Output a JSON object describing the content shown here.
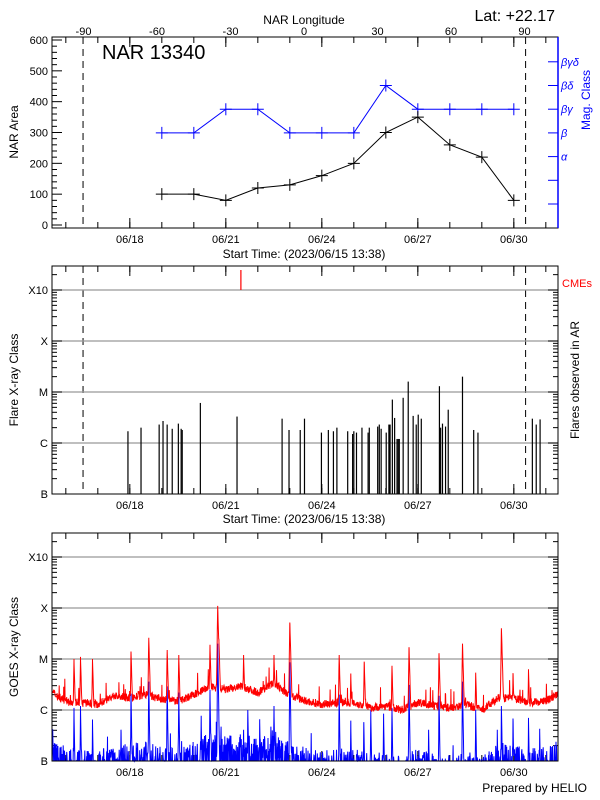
{
  "colors": {
    "area": "#000000",
    "mag_class": "#0000ff",
    "cme": "#ff0000",
    "goes_long": "#ff0000",
    "goes_short": "#0000ff",
    "grid": "#999999"
  },
  "chart_data": [
    {
      "type": "line",
      "title": "NAR 13340",
      "annotation": "Lat: +22.17",
      "top_axis_label": "NAR Longitude",
      "top_axis_ticks": [
        -90,
        -60,
        -30,
        0,
        30,
        60,
        90
      ],
      "xlabel": "Start Time: (2023/06/15 13:38)",
      "x_tick_labels": [
        "06/18",
        "06/21",
        "06/24",
        "06/27",
        "06/30"
      ],
      "xlim": [
        "2023-06-15T13:38",
        "2023-07-01T09:00"
      ],
      "limb_markers": [
        "2023-06-16T12:55",
        "2023-06-30T08:50"
      ],
      "ylabel": "NAR Area",
      "ylim": [
        0,
        600
      ],
      "y_ticks": [
        0,
        100,
        200,
        300,
        400,
        500,
        600
      ],
      "y2label": "Mag. Class",
      "y2_tick_labels": [
        "",
        "",
        "α",
        "β",
        "βγ",
        "βδ",
        "βγδ"
      ],
      "x": [
        "2023-06-19",
        "2023-06-20",
        "2023-06-21",
        "2023-06-22",
        "2023-06-23",
        "2023-06-24",
        "2023-06-25",
        "2023-06-26",
        "2023-06-27",
        "2023-06-28",
        "2023-06-29",
        "2023-06-30"
      ],
      "series": [
        {
          "axis": "left",
          "values": [
            100,
            100,
            80,
            120,
            130,
            160,
            200,
            300,
            350,
            260,
            220,
            80
          ]
        },
        {
          "axis": "right",
          "values": [
            "β",
            "β",
            "βγ",
            "βγ",
            "β",
            "β",
            "β",
            "βδ",
            "βγ",
            "βγ",
            "βγ",
            "βγ"
          ]
        }
      ]
    },
    {
      "type": "bar",
      "ylabel": "Flare X-ray Class",
      "y2label": "Flares observed in AR",
      "cme_label": "CMEs",
      "xlabel": "Start Time: (2023/06/15 13:38)",
      "x_tick_labels": [
        "06/18",
        "06/21",
        "06/24",
        "06/27",
        "06/30"
      ],
      "y_tick_labels": [
        "B",
        "C",
        "M",
        "X",
        "X10"
      ],
      "y_scale": "log",
      "grid": true,
      "cmes": [
        "2023-06-21T11:18"
      ],
      "flares": [
        {
          "t": "2023-06-17T22:36",
          "c": "C1.7"
        },
        {
          "t": "2023-06-18T08:24",
          "c": "C2.0"
        },
        {
          "t": "2023-06-18T22:00",
          "c": "C2.3"
        },
        {
          "t": "2023-06-19T00:54",
          "c": "C2.7"
        },
        {
          "t": "2023-06-19T04:00",
          "c": "C2.3"
        },
        {
          "t": "2023-06-19T07:48",
          "c": "C1.9"
        },
        {
          "t": "2023-06-19T12:24",
          "c": "C2.4"
        },
        {
          "t": "2023-06-19T14:30",
          "c": "C1.9"
        },
        {
          "t": "2023-06-19T15:18",
          "c": "C1.8"
        },
        {
          "t": "2023-06-20T04:54",
          "c": "C6.1"
        },
        {
          "t": "2023-06-21T08:24",
          "c": "C3.3"
        },
        {
          "t": "2023-06-22T18:12",
          "c": "C3.0"
        },
        {
          "t": "2023-06-22T23:24",
          "c": "C1.8"
        },
        {
          "t": "2023-06-23T07:48",
          "c": "C1.8"
        },
        {
          "t": "2023-06-23T11:00",
          "c": "C3.0"
        },
        {
          "t": "2023-06-23T23:42",
          "c": "C1.6"
        },
        {
          "t": "2023-06-24T04:54",
          "c": "C1.8"
        },
        {
          "t": "2023-06-24T08:42",
          "c": "C1.7"
        },
        {
          "t": "2023-06-24T11:18",
          "c": "C2.0"
        },
        {
          "t": "2023-06-24T19:24",
          "c": "C1.7"
        },
        {
          "t": "2023-06-24T23:06",
          "c": "C1.5"
        },
        {
          "t": "2023-06-25T00:00",
          "c": "C1.7"
        },
        {
          "t": "2023-06-25T02:00",
          "c": "C1.6"
        },
        {
          "t": "2023-06-25T06:06",
          "c": "C2.0"
        },
        {
          "t": "2023-06-25T10:42",
          "c": "C1.6"
        },
        {
          "t": "2023-06-25T11:36",
          "c": "C2.0"
        },
        {
          "t": "2023-06-25T17:54",
          "c": "C2.1"
        },
        {
          "t": "2023-06-25T19:06",
          "c": "C2.3"
        },
        {
          "t": "2023-06-25T20:30",
          "c": "C1.9"
        },
        {
          "t": "2023-06-26T00:18",
          "c": "C1.6"
        },
        {
          "t": "2023-06-26T02:18",
          "c": "C2.3"
        },
        {
          "t": "2023-06-26T03:12",
          "c": "C2.3"
        },
        {
          "t": "2023-06-26T04:54",
          "c": "C7.1"
        },
        {
          "t": "2023-06-26T06:36",
          "c": "C3.1"
        },
        {
          "t": "2023-06-26T08:24",
          "c": "C1.2"
        },
        {
          "t": "2023-06-26T09:18",
          "c": "C1.2"
        },
        {
          "t": "2023-06-26T10:06",
          "c": "C1.2"
        },
        {
          "t": "2023-06-26T13:00",
          "c": "C7.7"
        },
        {
          "t": "2023-06-26T16:48",
          "c": "M1.6"
        },
        {
          "t": "2023-06-26T20:30",
          "c": "C3.4"
        },
        {
          "t": "2023-06-26T22:48",
          "c": "C2.3"
        },
        {
          "t": "2023-06-27T00:18",
          "c": "C3.6"
        },
        {
          "t": "2023-06-27T02:36",
          "c": "C3.0"
        },
        {
          "t": "2023-06-27T16:12",
          "c": "M1.3"
        },
        {
          "t": "2023-06-27T17:06",
          "c": "C2.0"
        },
        {
          "t": "2023-06-27T18:30",
          "c": "C2.4"
        },
        {
          "t": "2023-06-27T20:48",
          "c": "C2.1"
        },
        {
          "t": "2023-06-27T22:48",
          "c": "C4.5"
        },
        {
          "t": "2023-06-28T09:30",
          "c": "M2.0"
        },
        {
          "t": "2023-06-28T17:54",
          "c": "C1.8"
        },
        {
          "t": "2023-06-28T21:06",
          "c": "C1.6"
        },
        {
          "t": "2023-06-30T13:54",
          "c": "C3.0"
        },
        {
          "t": "2023-06-30T16:48",
          "c": "C2.3"
        },
        {
          "t": "2023-06-30T19:42",
          "c": "C2.9"
        }
      ]
    },
    {
      "type": "line",
      "ylabel": "GOES X-ray Class",
      "x_tick_labels": [
        "06/18",
        "06/21",
        "06/24",
        "06/27",
        "06/30"
      ],
      "y_tick_labels": [
        "B",
        "C",
        "M",
        "X",
        "X10"
      ],
      "y_scale": "log",
      "grid": true,
      "footer": "Prepared by HELIO",
      "long_channel": {
        "background": [
          [
            "2023-06-15T14:00",
            "C2.2"
          ],
          [
            "2023-06-16T00:00",
            "C1.5"
          ],
          [
            "2023-06-16T12:00",
            "C1.4"
          ],
          [
            "2023-06-17T00:00",
            "C1.3"
          ],
          [
            "2023-06-17T12:00",
            "C1.9"
          ],
          [
            "2023-06-18T00:00",
            "C1.7"
          ],
          [
            "2023-06-18T12:00",
            "C2.0"
          ],
          [
            "2023-06-19T00:00",
            "C1.6"
          ],
          [
            "2023-06-19T12:00",
            "C1.5"
          ],
          [
            "2023-06-20T00:00",
            "C2.0"
          ],
          [
            "2023-06-20T12:00",
            "C2.9"
          ],
          [
            "2023-06-21T00:00",
            "C2.5"
          ],
          [
            "2023-06-21T12:00",
            "C2.9"
          ],
          [
            "2023-06-22T00:00",
            "C2.2"
          ],
          [
            "2023-06-22T12:00",
            "C3.4"
          ],
          [
            "2023-06-23T00:00",
            "C1.9"
          ],
          [
            "2023-06-23T12:00",
            "C1.5"
          ],
          [
            "2023-06-24T00:00",
            "C1.3"
          ],
          [
            "2023-06-24T12:00",
            "C1.4"
          ],
          [
            "2023-06-25T00:00",
            "C1.4"
          ],
          [
            "2023-06-25T12:00",
            "C1.1"
          ],
          [
            "2023-06-26T00:00",
            "C1.2"
          ],
          [
            "2023-06-26T12:00",
            "C1.0"
          ],
          [
            "2023-06-27T00:00",
            "C1.4"
          ],
          [
            "2023-06-27T12:00",
            "C1.2"
          ],
          [
            "2023-06-28T00:00",
            "C1.1"
          ],
          [
            "2023-06-28T12:00",
            "C1.3"
          ],
          [
            "2023-06-29T00:00",
            "C1.0"
          ],
          [
            "2023-06-29T12:00",
            "C1.7"
          ],
          [
            "2023-06-30T00:00",
            "C1.7"
          ],
          [
            "2023-06-30T12:00",
            "C1.4"
          ],
          [
            "2023-07-01T00:00",
            "C1.5"
          ],
          [
            "2023-07-01T09:00",
            "C2.0"
          ]
        ],
        "peaks": [
          [
            "2023-06-16T06:06",
            "M1.0"
          ],
          [
            "2023-06-16T11:00",
            "M1.1"
          ],
          [
            "2023-06-16T20:00",
            "M1.0"
          ],
          [
            "2023-06-18T00:54",
            "M1.4"
          ],
          [
            "2023-06-18T14:12",
            "M2.6"
          ],
          [
            "2023-06-19T04:00",
            "M1.5"
          ],
          [
            "2023-06-19T12:42",
            "M1.2"
          ],
          [
            "2023-06-20T12:06",
            "M1.9"
          ],
          [
            "2023-06-20T17:54",
            "X1.1"
          ],
          [
            "2023-06-20T18:48",
            "M2.5"
          ],
          [
            "2023-06-21T13:18",
            "M1.2"
          ],
          [
            "2023-06-22T12:06",
            "M1.2"
          ],
          [
            "2023-06-23T00:00",
            "M5.2"
          ],
          [
            "2023-06-24T13:00",
            "M1.2"
          ],
          [
            "2023-06-24T21:42",
            "C5.2"
          ],
          [
            "2023-06-25T07:48",
            "C8.9"
          ],
          [
            "2023-06-26T04:36",
            "C7.4"
          ],
          [
            "2023-06-26T17:24",
            "M1.7"
          ],
          [
            "2023-06-27T15:54",
            "M1.3"
          ],
          [
            "2023-06-28T09:30",
            "M2.0"
          ],
          [
            "2023-06-28T19:24",
            "C5.4"
          ],
          [
            "2023-06-29T14:42",
            "M4.0"
          ],
          [
            "2023-06-29T23:24",
            "C5.3"
          ],
          [
            "2023-06-30T11:00",
            "C6.3"
          ]
        ]
      },
      "short_channel": {
        "peaks": [
          [
            "2023-06-15T14:10",
            "B4.2"
          ],
          [
            "2023-06-15T17:36",
            "B1.9"
          ],
          [
            "2023-06-16T06:06",
            "C1.1"
          ],
          [
            "2023-06-16T11:00",
            "C1.2"
          ],
          [
            "2023-06-16T20:00",
            "B6.5"
          ],
          [
            "2023-06-17T17:24",
            "B4.1"
          ],
          [
            "2023-06-18T00:54",
            "C2.1"
          ],
          [
            "2023-06-18T14:12",
            "C3.6"
          ],
          [
            "2023-06-19T04:00",
            "C2.9"
          ],
          [
            "2023-06-19T12:42",
            "C2.2"
          ],
          [
            "2023-06-20T05:30",
            "B7.7"
          ],
          [
            "2023-06-20T12:06",
            "C2.5"
          ],
          [
            "2023-06-20T17:54",
            "M2.0"
          ],
          [
            "2023-06-21T13:18",
            "B4.1"
          ],
          [
            "2023-06-21T16:30",
            "C1.0"
          ],
          [
            "2023-06-22T01:24",
            "B6.6"
          ],
          [
            "2023-06-22T12:06",
            "C1.2"
          ],
          [
            "2023-06-23T00:00",
            "C8.6"
          ],
          [
            "2023-06-24T13:00",
            "C2.0"
          ],
          [
            "2023-06-24T21:42",
            "B6.2"
          ],
          [
            "2023-06-25T07:30",
            "B5.8"
          ],
          [
            "2023-06-25T12:42",
            "C1.0"
          ],
          [
            "2023-06-25T22:18",
            "B8.5"
          ],
          [
            "2023-06-26T04:36",
            "C1.1"
          ],
          [
            "2023-06-26T17:24",
            "C3.1"
          ],
          [
            "2023-06-27T08:06",
            "B4.1"
          ],
          [
            "2023-06-27T15:54",
            "C1.9"
          ],
          [
            "2023-06-28T09:30",
            "C3.6"
          ],
          [
            "2023-06-28T19:24",
            "C1.0"
          ],
          [
            "2023-06-29T11:36",
            "B4.1"
          ],
          [
            "2023-06-29T14:42",
            "C1.2"
          ],
          [
            "2023-06-29T23:24",
            "B6.8"
          ],
          [
            "2023-06-30T11:00",
            "B7.0"
          ],
          [
            "2023-06-30T19:24",
            "B4.3"
          ]
        ]
      }
    }
  ]
}
